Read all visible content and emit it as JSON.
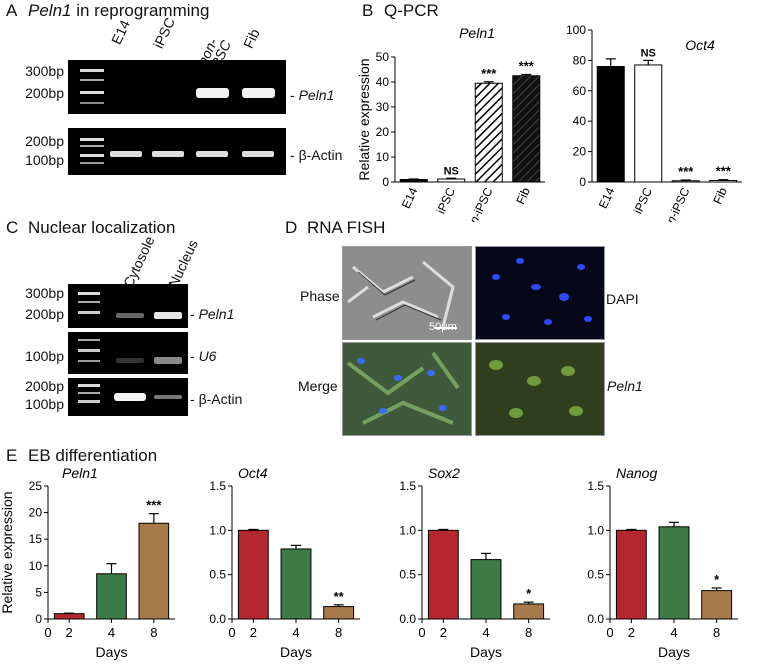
{
  "panelA": {
    "letter": "A",
    "title_gene": "Peln1",
    "title_rest": " in reprogramming",
    "lanes": [
      "E14",
      "iPSC",
      "non-\niPSC",
      "Fib"
    ],
    "gel1_markers": [
      "300bp",
      "200bp"
    ],
    "gel1_label": "Peln1",
    "gel2_markers": [
      "200bp",
      "100bp"
    ],
    "gel2_label": "β-Actin"
  },
  "panelB": {
    "letter": "B",
    "title": "Q-PCR"
  },
  "panelC": {
    "letter": "C",
    "title": "Nuclear localization",
    "lanes": [
      "Cytosole",
      "Nucleus"
    ],
    "markers1": [
      "300bp",
      "200bp"
    ],
    "markers2": [
      "100bp"
    ],
    "markers3": [
      "200bp",
      "100bp"
    ],
    "labels": [
      "Peln1",
      "U6",
      "β-Actin"
    ]
  },
  "panelD": {
    "letter": "D",
    "title": "RNA FISH",
    "phase": "Phase",
    "dapi": "DAPI",
    "merge": "Merge",
    "peln1": "Peln1",
    "scale": "50μm"
  },
  "panelE": {
    "letter": "E",
    "title": "EB differentiation"
  },
  "colors": {
    "red": "#b5262d",
    "green": "#3c7a46",
    "brown": "#a87a4a"
  },
  "chart_data": [
    {
      "type": "bar",
      "id": "B-peln1",
      "title": "Peln1",
      "ylabel": "Relative expression",
      "categories": [
        "E14",
        "iPSC",
        "non-iPSC",
        "Fib"
      ],
      "values": [
        1,
        1.2,
        39.5,
        42.5
      ],
      "errors": [
        0.2,
        0.3,
        0.6,
        0.5
      ],
      "annotations": [
        "",
        "NS",
        "***",
        "***"
      ],
      "fills": [
        "black",
        "white",
        "hatch",
        "hatch-dark"
      ],
      "ylim": [
        0,
        50
      ],
      "yticks": [
        "0",
        "10",
        "20",
        "30",
        "40",
        "50"
      ]
    },
    {
      "type": "bar",
      "id": "B-oct4",
      "title": "Oct4",
      "categories": [
        "E14",
        "iPSC",
        "non-iPSC",
        "Fib"
      ],
      "values": [
        76,
        77,
        0.8,
        1
      ],
      "errors": [
        5,
        3,
        0.5,
        0.5
      ],
      "annotations": [
        "",
        "NS",
        "***",
        "***"
      ],
      "fills": [
        "black",
        "white",
        "white",
        "white"
      ],
      "ylim": [
        0,
        100
      ],
      "yticks": [
        "0",
        "20",
        "40",
        "60",
        "80",
        "100"
      ]
    },
    {
      "type": "bar",
      "id": "E-peln1",
      "title": "Peln1",
      "ylabel": "Relative expression",
      "xlabel": "Days",
      "categories": [
        "2",
        "4",
        "8"
      ],
      "values": [
        1,
        8.5,
        18
      ],
      "errors": [
        0.1,
        1.9,
        1.8
      ],
      "annotations": [
        "",
        "",
        "***"
      ],
      "ylim": [
        0,
        25
      ],
      "yticks": [
        "0",
        "5",
        "10",
        "15",
        "20",
        "25"
      ]
    },
    {
      "type": "bar",
      "id": "E-oct4",
      "title": "Oct4",
      "xlabel": "Days",
      "categories": [
        "2",
        "4",
        "8"
      ],
      "values": [
        1.0,
        0.79,
        0.14
      ],
      "errors": [
        0.01,
        0.04,
        0.02
      ],
      "annotations": [
        "",
        "",
        "**"
      ],
      "ylim": [
        0,
        1.5
      ],
      "yticks": [
        "0.0",
        "0.5",
        "1.0",
        "1.5"
      ]
    },
    {
      "type": "bar",
      "id": "E-sox2",
      "title": "Sox2",
      "xlabel": "Days",
      "categories": [
        "2",
        "4",
        "8"
      ],
      "values": [
        1.0,
        0.67,
        0.17
      ],
      "errors": [
        0.01,
        0.07,
        0.02
      ],
      "annotations": [
        "",
        "",
        "*"
      ],
      "ylim": [
        0,
        1.5
      ],
      "yticks": [
        "0.0",
        "0.5",
        "1.0",
        "1.5"
      ]
    },
    {
      "type": "bar",
      "id": "E-nanog",
      "title": "Nanog",
      "xlabel": "Days",
      "categories": [
        "2",
        "4",
        "8"
      ],
      "values": [
        1.0,
        1.04,
        0.32
      ],
      "errors": [
        0.01,
        0.05,
        0.03
      ],
      "annotations": [
        "",
        "",
        "*"
      ],
      "ylim": [
        0,
        1.5
      ],
      "yticks": [
        "0.0",
        "0.5",
        "1.0",
        "1.5"
      ]
    }
  ]
}
